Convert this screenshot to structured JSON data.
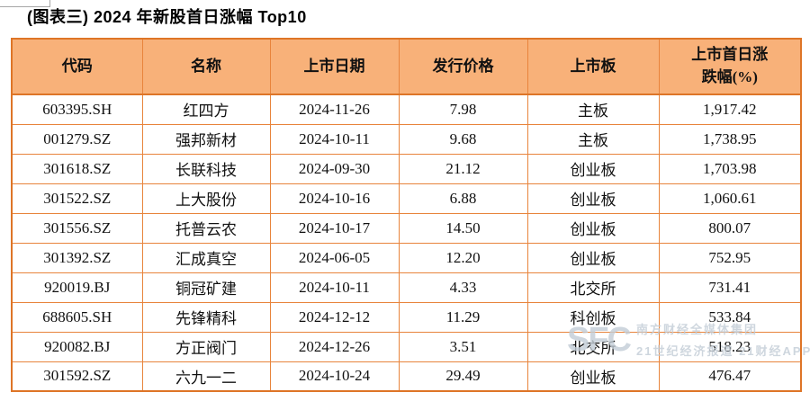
{
  "page": {
    "title": "(图表三) 2024 年新股首日涨幅 Top10"
  },
  "colors": {
    "header_fill": "#F8B179",
    "grid_border": "#E8843C",
    "outer_border": "#DE7527",
    "watermark_color": "#C3CDD6",
    "text_color": "#111111"
  },
  "table": {
    "columns": [
      {
        "key": "code",
        "label": "代码"
      },
      {
        "key": "name",
        "label": "名称"
      },
      {
        "key": "date",
        "label": "上市日期"
      },
      {
        "key": "price",
        "label": "发行价格"
      },
      {
        "key": "board",
        "label": "上市板"
      },
      {
        "key": "change",
        "label": "上市首日涨跌幅(%)"
      }
    ],
    "rows": [
      {
        "code": "603395.SH",
        "name": "红四方",
        "date": "2024-11-26",
        "price": "7.98",
        "board": "主板",
        "change": "1,917.42"
      },
      {
        "code": "001279.SZ",
        "name": "强邦新材",
        "date": "2024-10-11",
        "price": "9.68",
        "board": "主板",
        "change": "1,738.95"
      },
      {
        "code": "301618.SZ",
        "name": "长联科技",
        "date": "2024-09-30",
        "price": "21.12",
        "board": "创业板",
        "change": "1,703.98"
      },
      {
        "code": "301522.SZ",
        "name": "上大股份",
        "date": "2024-10-16",
        "price": "6.88",
        "board": "创业板",
        "change": "1,060.61"
      },
      {
        "code": "301556.SZ",
        "name": "托普云农",
        "date": "2024-10-17",
        "price": "14.50",
        "board": "创业板",
        "change": "800.07"
      },
      {
        "code": "301392.SZ",
        "name": "汇成真空",
        "date": "2024-06-05",
        "price": "12.20",
        "board": "创业板",
        "change": "752.95"
      },
      {
        "code": "920019.BJ",
        "name": "铜冠矿建",
        "date": "2024-10-11",
        "price": "4.33",
        "board": "北交所",
        "change": "731.41"
      },
      {
        "code": "688605.SH",
        "name": "先锋精科",
        "date": "2024-12-12",
        "price": "11.29",
        "board": "科创板",
        "change": "533.84"
      },
      {
        "code": "920082.BJ",
        "name": "方正阀门",
        "date": "2024-12-26",
        "price": "3.51",
        "board": "北交所",
        "change": "518.23"
      },
      {
        "code": "301592.SZ",
        "name": "六九一二",
        "date": "2024-10-24",
        "price": "29.49",
        "board": "创业板",
        "change": "476.47"
      }
    ]
  },
  "watermark": {
    "logo": "SFC",
    "line1": "南方财经全媒体集团",
    "line2": "21世纪经济报道 21财经APP"
  }
}
